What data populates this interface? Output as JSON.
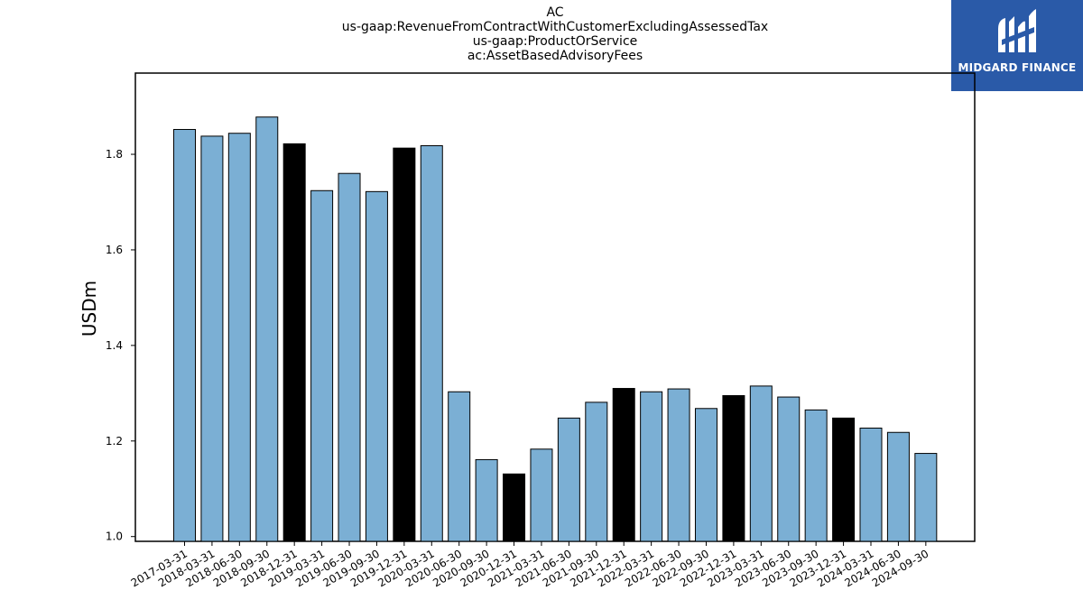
{
  "title_lines": [
    "AC",
    "us-gaap:RevenueFromContractWithCustomerExcludingAssessedTax",
    "us-gaap:ProductOrService",
    "ac:AssetBasedAdvisoryFees"
  ],
  "logo": {
    "text": "MIDGARD FINANCE",
    "color": "#2a5aa8"
  },
  "chart_data": {
    "type": "bar",
    "title": "AC\nus-gaap:RevenueFromContractWithCustomerExcludingAssessedTax\nus-gaap:ProductOrService\nac:AssetBasedAdvisoryFees",
    "xlabel": "",
    "ylabel": "USDm",
    "ylim": [
      0.99,
      1.97
    ],
    "yticks": [
      1.0,
      1.2,
      1.4,
      1.6,
      1.8
    ],
    "grid": false,
    "colors": {
      "quarter": "#7bafd4",
      "year_end": "#000000"
    },
    "categories": [
      "2017-03-31",
      "2018-03-31",
      "2018-06-30",
      "2018-09-30",
      "2018-12-31",
      "2019-03-31",
      "2019-06-30",
      "2019-09-30",
      "2019-12-31",
      "2020-03-31",
      "2020-06-30",
      "2020-09-30",
      "2020-12-31",
      "2021-03-31",
      "2021-06-30",
      "2021-09-30",
      "2021-12-31",
      "2022-03-31",
      "2022-06-30",
      "2022-09-30",
      "2022-12-31",
      "2023-03-31",
      "2023-06-30",
      "2023-09-30",
      "2023-12-31",
      "2024-03-31",
      "2024-06-30",
      "2024-09-30"
    ],
    "values": [
      1.852,
      1.838,
      1.844,
      1.878,
      1.822,
      1.724,
      1.76,
      1.722,
      1.813,
      1.818,
      1.303,
      1.161,
      1.131,
      1.183,
      1.248,
      1.281,
      1.31,
      1.303,
      1.309,
      1.268,
      1.295,
      1.315,
      1.292,
      1.265,
      1.248,
      1.227,
      1.218,
      1.174
    ]
  }
}
